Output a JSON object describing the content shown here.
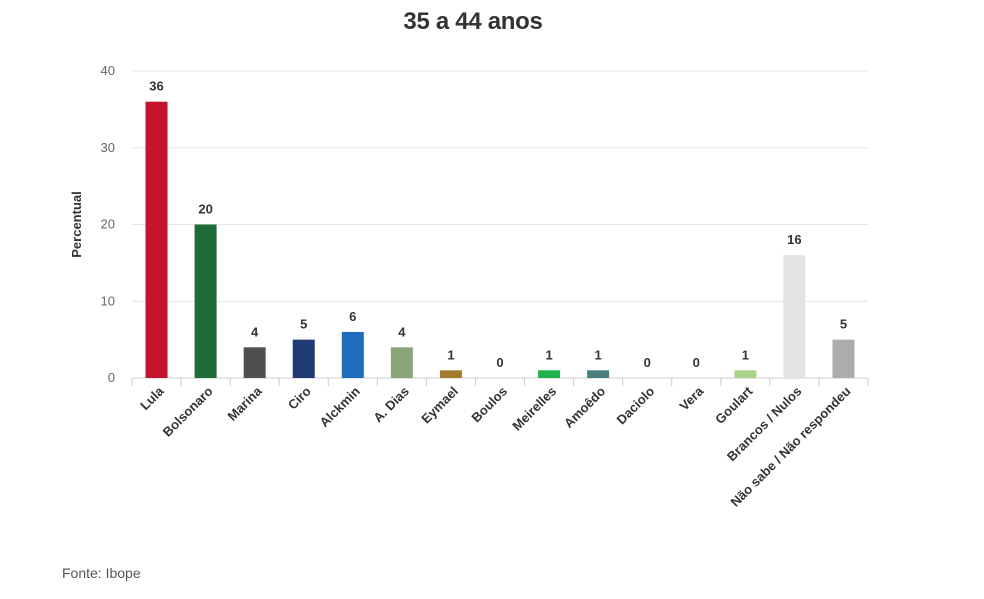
{
  "chart_data": {
    "type": "bar",
    "title": "35 a 44 anos",
    "ylabel": "Percentual",
    "xlabel": "",
    "ylim": [
      0,
      40
    ],
    "yticks": [
      0,
      10,
      20,
      30,
      40
    ],
    "grid": true,
    "categories": [
      "Lula",
      "Bolsonaro",
      "Marina",
      "Ciro",
      "Alckmin",
      "A. Dias",
      "Eymael",
      "Boulos",
      "Meirelles",
      "Amoêdo",
      "Daciolo",
      "Vera",
      "Goulart",
      "Brancos / Nulos",
      "Não sabe / Não respondeu"
    ],
    "values": [
      36,
      20,
      4,
      5,
      6,
      4,
      1,
      0,
      1,
      1,
      0,
      0,
      1,
      16,
      5
    ],
    "colors": [
      "#c4122f",
      "#1e6b38",
      "#4d4f51",
      "#203a73",
      "#1f6bbc",
      "#8aa57a",
      "#a37a2b",
      "#cccccc",
      "#1fb24a",
      "#4a7f80",
      "#cccccc",
      "#cccccc",
      "#a9d388",
      "#e3e3e3",
      "#acacac"
    ]
  },
  "source": "Fonte: Ibope"
}
